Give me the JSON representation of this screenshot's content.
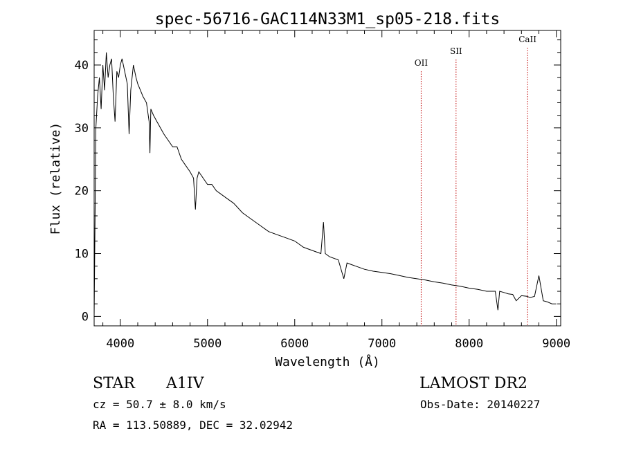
{
  "chart_data": {
    "type": "line",
    "title": "spec-56716-GAC114N33M1_sp05-218.fits",
    "xlabel": "Wavelength (Å)",
    "ylabel": "Flux (relative)",
    "xlim": [
      3700,
      9050
    ],
    "ylim": [
      -1.5,
      45.5
    ],
    "x_ticks": [
      4000,
      5000,
      6000,
      7000,
      8000,
      9000
    ],
    "y_ticks": [
      0,
      10,
      20,
      30,
      40
    ],
    "x_tick_labels": [
      "4000",
      "5000",
      "6000",
      "7000",
      "8000",
      "9000"
    ],
    "y_tick_labels": [
      "0",
      "10",
      "20",
      "30",
      "40"
    ],
    "grid": false,
    "series": [
      {
        "x": [
          3700,
          3720,
          3740,
          3760,
          3780,
          3800,
          3820,
          3840,
          3860,
          3880,
          3900,
          3920,
          3940,
          3960,
          3980,
          4000,
          4020,
          4050,
          4080,
          4101,
          4120,
          4150,
          4180,
          4200,
          4230,
          4260,
          4300,
          4330,
          4340,
          4350,
          4380,
          4420,
          4460,
          4500,
          4550,
          4600,
          4650,
          4700,
          4750,
          4800,
          4840,
          4861,
          4880,
          4900,
          4950,
          5000,
          5050,
          5100,
          5150,
          5200,
          5300,
          5400,
          5500,
          5600,
          5700,
          5800,
          5900,
          6000,
          6100,
          6200,
          6300,
          6330,
          6350,
          6400,
          6500,
          6563,
          6600,
          6700,
          6800,
          6900,
          7000,
          7100,
          7200,
          7300,
          7400,
          7500,
          7600,
          7700,
          7800,
          7900,
          8000,
          8100,
          8200,
          8300,
          8330,
          8350,
          8400,
          8450,
          8500,
          8540,
          8600,
          8662,
          8700,
          8750,
          8800,
          8850,
          8900,
          8950,
          9000
        ],
        "y": [
          0,
          30,
          35,
          38,
          33,
          40,
          36,
          42,
          38,
          40,
          41,
          35,
          31,
          39,
          38,
          40,
          41,
          39,
          37,
          29,
          36,
          40,
          38,
          37,
          36,
          35,
          34,
          31,
          26,
          33,
          32,
          31,
          30,
          29,
          28,
          27,
          27,
          25,
          24,
          23,
          22,
          17,
          22,
          23,
          22,
          21,
          21,
          20,
          19.5,
          19,
          18,
          16.5,
          15.5,
          14.5,
          13.5,
          13,
          12.5,
          12,
          11,
          10.5,
          10,
          15,
          10,
          9.5,
          9,
          6,
          8.5,
          8,
          7.5,
          7.2,
          7,
          6.8,
          6.5,
          6.2,
          6,
          5.8,
          5.5,
          5.3,
          5,
          4.8,
          4.5,
          4.3,
          4,
          4,
          1,
          4,
          3.8,
          3.6,
          3.5,
          2.5,
          3.3,
          3.2,
          3.0,
          3.2,
          6.5,
          2.5,
          2.3,
          2.0,
          2.0
        ]
      }
    ],
    "annotations": [
      {
        "label": "OII",
        "x": 7450
      },
      {
        "label": "SII",
        "x": 7850
      },
      {
        "label": "CaII",
        "x": 8670
      }
    ]
  },
  "info": {
    "object_class": "STAR",
    "subclass": "A1IV",
    "survey": "LAMOST DR2",
    "cz": "cz = 50.7 ± 8.0 km/s",
    "obs_date": "Obs-Date: 20140227",
    "coords": "RA = 113.50889, DEC =  32.02942"
  }
}
